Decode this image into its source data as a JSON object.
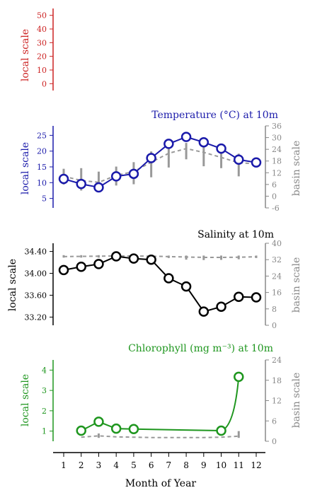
{
  "chart_data": [
    {
      "type": "line",
      "title": "",
      "ylabel": "local scale",
      "ylim": [
        -5,
        55
      ],
      "yticks": [
        0,
        10,
        20,
        30,
        40,
        50
      ],
      "color": "#cc2222",
      "x": [],
      "series": []
    },
    {
      "type": "line",
      "title": "Temperature (°C) at 10m",
      "ylabel": "local scale",
      "ylabel_right": "basin scale",
      "ylim": [
        2,
        28
      ],
      "yticks": [
        5,
        10,
        15,
        20,
        25
      ],
      "ylim_right": [
        -6,
        36
      ],
      "yticks_right": [
        -6,
        0,
        6,
        12,
        18,
        24,
        30,
        36
      ],
      "color": "#1a1aaa",
      "x": [
        1,
        2,
        3,
        4,
        5,
        6,
        7,
        8,
        9,
        10,
        11,
        12
      ],
      "series": [
        {
          "axis": "left",
          "style": "solid-circles",
          "values": [
            11.2,
            9.6,
            8.5,
            12.0,
            12.8,
            17.8,
            22.3,
            24.5,
            22.8,
            20.8,
            17.3,
            16.4
          ]
        },
        {
          "axis": "left",
          "style": "dashed",
          "values": [
            12.0,
            10.7,
            10.1,
            12.3,
            13.5,
            16.5,
            19.3,
            20.8,
            19.6,
            18.0,
            16.3,
            16.0
          ]
        },
        {
          "axis": "left",
          "style": "range-bars",
          "low": [
            9.4,
            7.5,
            7.9,
            9.1,
            9.5,
            11.7,
            14.8,
            17.4,
            15.2,
            14.6,
            12.0,
            15.3
          ],
          "high": [
            14.4,
            14.6,
            13.5,
            15.1,
            16.5,
            19.9,
            21.1,
            22.6,
            21.5,
            20.0,
            19.2,
            17.0
          ]
        }
      ]
    },
    {
      "type": "line",
      "title": "Salinity at 10m",
      "ylabel": "local scale",
      "ylabel_right": "basin scale",
      "ylim": [
        33.05,
        34.55
      ],
      "yticks": [
        33.2,
        33.6,
        34.0,
        34.4
      ],
      "yticks_labels": [
        "33.20",
        "33.60",
        "34.00",
        "34.40"
      ],
      "ylim_right": [
        0,
        40
      ],
      "yticks_right": [
        0,
        8,
        16,
        24,
        32,
        40
      ],
      "color": "#000000",
      "x": [
        1,
        2,
        3,
        4,
        5,
        6,
        7,
        8,
        9,
        10,
        11,
        12
      ],
      "series": [
        {
          "axis": "left",
          "style": "solid-circles",
          "values": [
            34.06,
            34.12,
            34.17,
            34.31,
            34.27,
            34.25,
            33.91,
            33.76,
            33.3,
            33.39,
            33.57,
            33.56
          ]
        },
        {
          "axis": "right",
          "style": "dashed",
          "values": [
            33.5,
            33.6,
            33.7,
            33.8,
            33.8,
            33.7,
            33.5,
            33.3,
            33.1,
            33.1,
            33.2,
            33.4
          ]
        },
        {
          "axis": "right",
          "style": "range-bars",
          "low": [
            33.0,
            33.0,
            33.0,
            33.2,
            33.3,
            33.0,
            32.8,
            32.0,
            31.8,
            31.9,
            32.2,
            32.8
          ],
          "high": [
            34.2,
            34.2,
            34.2,
            34.2,
            34.2,
            34.0,
            34.0,
            34.0,
            34.0,
            34.0,
            34.0,
            34.0
          ]
        }
      ]
    },
    {
      "type": "line",
      "title": "Chlorophyll (mg m⁻³) at 10m",
      "ylabel": "local scale",
      "ylabel_right": "basin scale",
      "ylim": [
        0.5,
        4.5
      ],
      "yticks": [
        1,
        2,
        3,
        4
      ],
      "ylim_right": [
        0,
        24
      ],
      "yticks_right": [
        0,
        6,
        12,
        18,
        24
      ],
      "color": "#1e961e",
      "x": [
        2,
        3,
        4,
        5,
        10,
        11
      ],
      "series": [
        {
          "axis": "left",
          "style": "solid-circles",
          "values": [
            1.02,
            1.46,
            1.12,
            1.1,
            1.02,
            3.67
          ],
          "curve_to": [
            10.5,
            1.2
          ]
        },
        {
          "axis": "right",
          "style": "dashed",
          "x": [
            2,
            3,
            4,
            5,
            6,
            7,
            8,
            9,
            10,
            11
          ],
          "values": [
            1.2,
            1.6,
            1.3,
            1.2,
            1.1,
            1.1,
            1.1,
            1.1,
            1.2,
            1.5
          ]
        },
        {
          "axis": "right",
          "style": "range-bars",
          "x": [
            3,
            11
          ],
          "low": [
            1.0,
            1.0
          ],
          "high": [
            2.3,
            3.0
          ]
        }
      ]
    }
  ],
  "xaxis": {
    "label": "Month of Year",
    "ticks": [
      1,
      2,
      3,
      4,
      5,
      6,
      7,
      8,
      9,
      10,
      11,
      12
    ]
  }
}
